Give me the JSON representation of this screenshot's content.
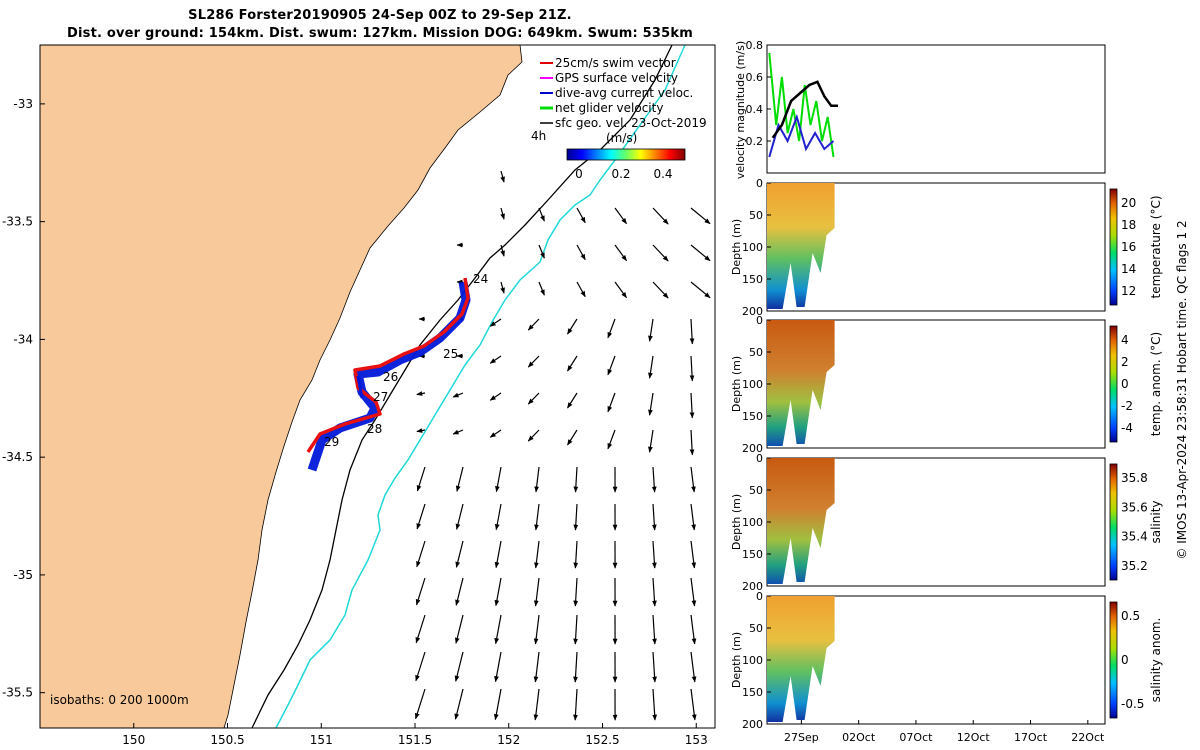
{
  "header": {
    "title_line1": "SL286 Forster20190905 24-Sep 00Z to 29-Sep 21Z.",
    "title_line2": "Dist. over ground: 154km. Dist. swum: 127km. Mission DOG: 649km. Swum: 535km"
  },
  "map": {
    "x_ticks": [
      "150",
      "150.5",
      "151",
      "151.5",
      "152",
      "152.5",
      "153"
    ],
    "y_ticks": [
      "-33",
      "-33.5",
      "-34",
      "-34.5",
      "-35",
      "-35.5"
    ],
    "legend": [
      {
        "label": "25cm/s swim vector",
        "color": "#e00000"
      },
      {
        "label": "GPS surface velocity",
        "color": "#ff00ff"
      },
      {
        "label": "dive-avg current veloc.",
        "color": "#0000cc"
      },
      {
        "label": "net glider velocity",
        "color": "#00dd00"
      },
      {
        "label": "sfc geo. vel. 23-Oct-2019",
        "color": "#000000"
      }
    ],
    "time_label": "4h",
    "colorbar_unit": "(m/s)",
    "colorbar_ticks": [
      "0",
      "0.2",
      "0.4"
    ],
    "isobaths_label": "isobaths: 0   200  1000m",
    "day_labels": [
      "24",
      "25",
      "26",
      "27",
      "28",
      "29"
    ],
    "land_color": "#f8c99a"
  },
  "panels": {
    "velocity": {
      "ylabel": "velocity magnitude (m/s)",
      "y_ticks": [
        "0.2",
        "0.4",
        "0.6",
        "0.8"
      ]
    },
    "depth_label": "Depth (m)",
    "depth_ticks": [
      "0",
      "50",
      "100",
      "150",
      "200"
    ],
    "temperature": {
      "label": "temperature (°C)",
      "ticks": [
        "20",
        "18",
        "16",
        "14",
        "12"
      ]
    },
    "temp_anom": {
      "label": "temp. anom. (°C)",
      "ticks": [
        "4",
        "2",
        "0",
        "-2",
        "-4"
      ]
    },
    "salinity": {
      "label": "salinity",
      "ticks": [
        "35.8",
        "35.6",
        "35.4",
        "35.2"
      ]
    },
    "sal_anom": {
      "label": "salinity anom.",
      "ticks": [
        "0.5",
        "0",
        "-0.5"
      ]
    },
    "date_ticks": [
      "27Sep",
      "02Oct",
      "07Oct",
      "12Oct",
      "17Oct",
      "22Oct"
    ],
    "footer": "© IMOS 13-Apr-2024 23:58:31 Hobart time. QC flags 1  2"
  },
  "chart_data": [
    {
      "type": "scatter",
      "title": "SL286 Forster20190905 24-Sep 00Z to 29-Sep 21Z.",
      "xlabel": "",
      "ylabel": "",
      "xlim": [
        149.5,
        153.1
      ],
      "ylim": [
        -35.65,
        -32.75
      ],
      "series": [
        {
          "name": "glider track",
          "x": [
            151.83,
            151.7,
            151.55,
            151.25,
            151.12,
            151.2,
            151.28,
            151.42,
            151.2,
            151.0
          ],
          "y": [
            -33.7,
            -33.95,
            -34.05,
            -34.09,
            -34.12,
            -34.22,
            -34.28,
            -34.3,
            -34.36,
            -34.45
          ]
        }
      ]
    },
    {
      "type": "line",
      "ylabel": "velocity magnitude (m/s)",
      "ylim": [
        0,
        0.8
      ],
      "series": [
        {
          "name": "net glider velocity",
          "x": [
            24.2,
            24.8,
            25.3,
            25.8,
            26.3,
            26.8,
            27.3,
            27.8,
            28.3,
            28.8,
            29.3,
            29.8
          ],
          "y": [
            0.75,
            0.3,
            0.6,
            0.25,
            0.4,
            0.2,
            0.55,
            0.3,
            0.45,
            0.2,
            0.35,
            0.1
          ]
        },
        {
          "name": "sfc geo. vel.",
          "x": [
            24.5,
            25.3,
            26.1,
            26.9,
            27.7,
            28.4,
            29.0,
            29.6,
            30.2
          ],
          "y": [
            0.22,
            0.3,
            0.45,
            0.5,
            0.55,
            0.57,
            0.48,
            0.42,
            0.42
          ]
        },
        {
          "name": "dive-avg current veloc.",
          "x": [
            24.2,
            25.0,
            25.8,
            26.6,
            27.4,
            28.2,
            29.0,
            29.8
          ],
          "y": [
            0.1,
            0.3,
            0.2,
            0.35,
            0.15,
            0.25,
            0.15,
            0.2
          ]
        }
      ]
    },
    {
      "type": "heatmap",
      "panels": [
        "temperature (°C)",
        "temp. anom. (°C)",
        "salinity",
        "salinity anom."
      ],
      "x_range": [
        "24-Sep",
        "29-Sep"
      ],
      "depth_range_m": [
        0,
        200
      ],
      "color_ranges": [
        [
          11.5,
          21
        ],
        [
          -4,
          4
        ],
        [
          35.05,
          35.85
        ],
        [
          -0.5,
          0.5
        ]
      ]
    }
  ]
}
